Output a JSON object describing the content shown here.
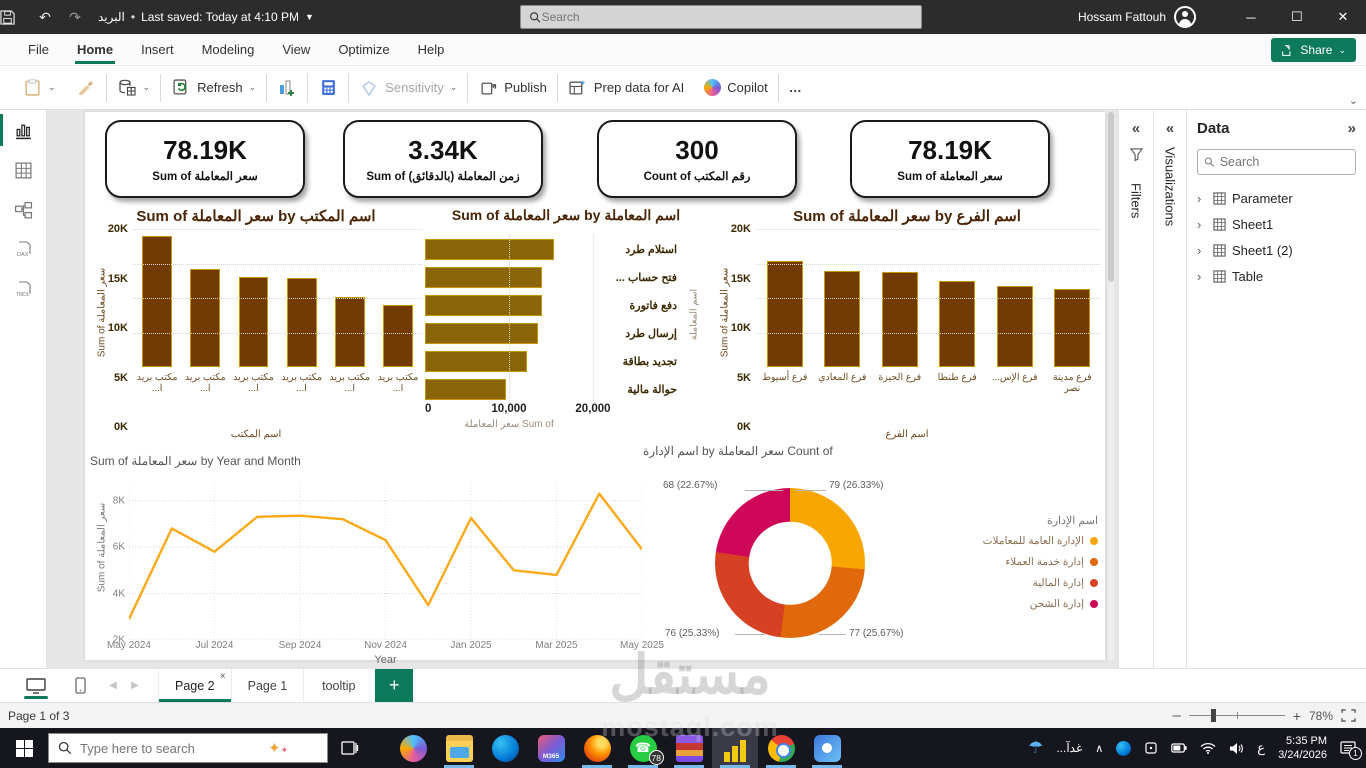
{
  "colors": {
    "accent": "#0E7A5C",
    "bar_fill": "#703A00",
    "bar_border": "#C89600",
    "hbar_fill": "#8A6508",
    "line": "#FBA919",
    "title_brown": "#4A2505"
  },
  "titlebar": {
    "doc_name": "البريد",
    "saved": "Last saved: Today at 4:10 PM",
    "search_placeholder": "Search",
    "user": "Hossam Fattouh"
  },
  "menu": {
    "items": [
      "File",
      "Home",
      "Insert",
      "Modeling",
      "View",
      "Optimize",
      "Help"
    ],
    "active_index": 1,
    "share_label": "Share"
  },
  "ribbon": {
    "refresh": "Refresh",
    "sensitivity": "Sensitivity",
    "publish": "Publish",
    "prep_ai": "Prep data for AI",
    "copilot": "Copilot",
    "more": "…"
  },
  "cards": [
    {
      "value": "78.19K",
      "label": "Sum of سعر المعاملة"
    },
    {
      "value": "3.34K",
      "label": "Sum of زمن المعاملة (بالدقائق)"
    },
    {
      "value": "300",
      "label": "Count of رقم المكتب"
    },
    {
      "value": "78.19K",
      "label": "Sum of سعر المعاملة"
    }
  ],
  "chart_data": [
    {
      "type": "bar",
      "title": "Sum of سعر المعاملة by اسم المكتب",
      "categories": [
        "مكتب بريد ا...",
        "مكتب بريد ا...",
        "مكتب بريد ا...",
        "مكتب بريد ا...",
        "مكتب بريد ا...",
        "مكتب بريد ا..."
      ],
      "values": [
        19000,
        14200,
        13000,
        12900,
        10100,
        9000
      ],
      "ylabel": "Sum of سعر المعاملة",
      "xlabel": "اسم المكتب",
      "ylim": [
        0,
        20000
      ],
      "yticks": [
        "20K",
        "15K",
        "10K",
        "5K",
        "0K"
      ]
    },
    {
      "type": "bar-horizontal",
      "title": "Sum of سعر المعاملة by اسم المعاملة",
      "categories": [
        "استلام طرد",
        "فتح حساب ...",
        "دفع فاتورة",
        "إرسال طرد",
        "تجديد بطاقة",
        "حوالة مالية"
      ],
      "values": [
        15300,
        13900,
        13900,
        13500,
        12100,
        9700
      ],
      "xlabel": "Sum of سعر المعاملة",
      "ylabel": "اسم المعاملة",
      "xlim": [
        0,
        20000
      ],
      "xticks": [
        "0",
        "10,000",
        "20,000"
      ]
    },
    {
      "type": "bar",
      "title": "Sum of سعر المعاملة by اسم الفرع",
      "categories": [
        "فرع أسيوط",
        "فرع المعادي",
        "فرع الجيزة",
        "فرع طنطا",
        "فرع الإس...",
        "فرع مدينة نصر"
      ],
      "values": [
        15300,
        13900,
        13700,
        12500,
        11800,
        11300
      ],
      "ylabel": "Sum of سعر المعاملة",
      "xlabel": "اسم الفرع",
      "ylim": [
        0,
        20000
      ],
      "yticks": [
        "20K",
        "15K",
        "10K",
        "5K",
        "0K"
      ]
    },
    {
      "type": "line",
      "title": "Sum of سعر المعاملة by Year and Month",
      "x": [
        "May 2024",
        "Jun 2024",
        "Jul 2024",
        "Aug 2024",
        "Sep 2024",
        "Oct 2024",
        "Nov 2024",
        "Dec 2024",
        "Jan 2025",
        "Feb 2025",
        "Mar 2025",
        "Apr 2025",
        "May 2025"
      ],
      "values": [
        2900,
        6800,
        5800,
        7300,
        7350,
        7200,
        6300,
        3500,
        7250,
        5000,
        4800,
        8300,
        5900
      ],
      "xticks": [
        "May 2024",
        "Jul 2024",
        "Sep 2024",
        "Nov 2024",
        "Jan 2025",
        "Mar 2025",
        "May 2025"
      ],
      "yticks": [
        "8K",
        "6K",
        "4K",
        "2K"
      ],
      "ytick_values": [
        8000,
        6000,
        4000,
        2000
      ],
      "ylim": [
        2000,
        8800
      ],
      "ylabel": "Sum of سعر المعاملة",
      "xlabel": "Year"
    },
    {
      "type": "donut",
      "title": "Count of سعر المعاملة by اسم الإدارة",
      "legend_title": "اسم الإدارة",
      "slices": [
        {
          "label": "الإدارة العامة للمعاملات",
          "value": 79,
          "pct": "26.33%",
          "callout": "79 (26.33%)",
          "color": "#F7A602"
        },
        {
          "label": "إدارة خدمة العملاء",
          "value": 77,
          "pct": "25.67%",
          "callout": "77 (25.67%)",
          "color": "#E2690B"
        },
        {
          "label": "إدارة المالية",
          "value": 76,
          "pct": "25.33%",
          "callout": "76 (25.33%)",
          "color": "#D64123"
        },
        {
          "label": "إدارة الشحن",
          "value": 68,
          "pct": "22.67%",
          "callout": "68 (22.67%)",
          "color": "#CF0758"
        }
      ],
      "total": 300
    }
  ],
  "right_panels": {
    "filters_label": "Filters",
    "visualizations_label": "Visualizations",
    "data": {
      "title": "Data",
      "search_placeholder": "Search",
      "tables": [
        "Parameter",
        "Sheet1",
        "Sheet1 (2)",
        "Table"
      ]
    }
  },
  "pages_bar": {
    "tabs": [
      {
        "label": "Page 2",
        "active": true,
        "closable": true
      },
      {
        "label": "Page 1",
        "active": false,
        "closable": false
      },
      {
        "label": "tooltip",
        "active": false,
        "closable": false
      }
    ]
  },
  "status_bar": {
    "page_indicator": "Page 1 of 3",
    "zoom": "78%"
  },
  "taskbar": {
    "search_placeholder": "Type here to search",
    "apps": [
      {
        "name": "copilot",
        "open": false
      },
      {
        "name": "file-explorer",
        "open": true
      },
      {
        "name": "edge",
        "open": false
      },
      {
        "name": "m365-copilot",
        "open": false,
        "label": "M365"
      },
      {
        "name": "firefox",
        "open": true
      },
      {
        "name": "whatsapp",
        "open": true,
        "badge": "78"
      },
      {
        "name": "winrar",
        "open": true
      },
      {
        "name": "power-bi",
        "open": true,
        "active": true
      },
      {
        "name": "chrome",
        "open": true
      },
      {
        "name": "photos",
        "open": true
      }
    ],
    "tray": {
      "weather": "غدآ...",
      "language": "ع",
      "time": "5:35 PM",
      "date": "3/24/2026",
      "notification_badge": "1"
    }
  },
  "watermark": {
    "arabic": "مستقل",
    "latin": "mostaql.com"
  }
}
